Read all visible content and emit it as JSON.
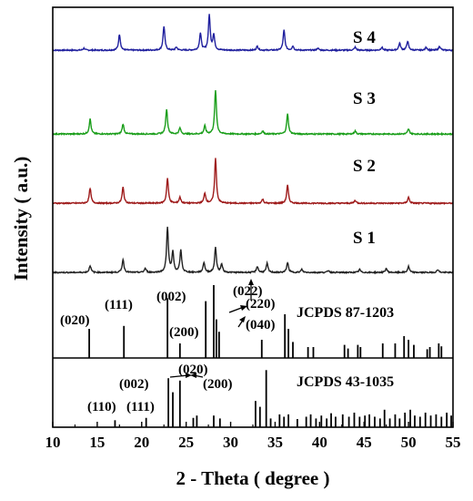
{
  "chart_data": {
    "type": "line",
    "xlabel": "2 - Theta ( degree )",
    "ylabel": "Intensity ( a.u.)",
    "xlim": [
      10,
      55
    ],
    "xticks": [
      10,
      15,
      20,
      25,
      30,
      35,
      40,
      45,
      50,
      55
    ],
    "grid": false,
    "series": [
      {
        "name": "S 4",
        "color": "#1f1f9e",
        "peaks": [
          [
            13.5,
            2
          ],
          [
            17.5,
            16
          ],
          [
            22.5,
            24
          ],
          [
            23.9,
            3
          ],
          [
            26.6,
            17
          ],
          [
            27.6,
            35
          ],
          [
            28.1,
            15
          ],
          [
            33.0,
            4
          ],
          [
            36.0,
            20
          ],
          [
            37.0,
            4
          ],
          [
            39.8,
            2
          ],
          [
            44.0,
            3
          ],
          [
            47.0,
            3
          ],
          [
            49.0,
            7
          ],
          [
            49.9,
            9
          ],
          [
            52.0,
            3
          ],
          [
            53.5,
            4
          ]
        ]
      },
      {
        "name": "S 3",
        "color": "#1a9e1a",
        "peaks": [
          [
            14.2,
            15
          ],
          [
            17.9,
            10
          ],
          [
            22.8,
            25
          ],
          [
            24.3,
            6
          ],
          [
            27.1,
            8
          ],
          [
            28.3,
            44
          ],
          [
            33.6,
            3
          ],
          [
            36.4,
            20
          ],
          [
            44.0,
            3
          ],
          [
            50.0,
            5
          ]
        ]
      },
      {
        "name": "S 2",
        "color": "#9e1a1a",
        "peaks": [
          [
            14.2,
            15
          ],
          [
            17.9,
            16
          ],
          [
            22.9,
            25
          ],
          [
            24.3,
            6
          ],
          [
            27.1,
            10
          ],
          [
            28.3,
            45
          ],
          [
            33.6,
            4
          ],
          [
            36.4,
            18
          ],
          [
            44.0,
            3
          ],
          [
            50.0,
            6
          ]
        ]
      },
      {
        "name": "S 1",
        "color": "#222222",
        "peaks": [
          [
            14.2,
            7
          ],
          [
            17.9,
            13
          ],
          [
            20.4,
            4
          ],
          [
            22.9,
            45
          ],
          [
            23.5,
            20
          ],
          [
            24.4,
            22
          ],
          [
            27.0,
            10
          ],
          [
            28.3,
            25
          ],
          [
            29.0,
            8
          ],
          [
            33.0,
            6
          ],
          [
            34.1,
            9
          ],
          [
            36.4,
            10
          ],
          [
            38.0,
            3
          ],
          [
            41.0,
            2
          ],
          [
            44.5,
            3
          ],
          [
            47.5,
            4
          ],
          [
            50.0,
            6
          ],
          [
            53.3,
            3
          ]
        ]
      }
    ],
    "references": [
      {
        "name": "JCPDS 87-1203",
        "sticks": [
          [
            14.1,
            0.4
          ],
          [
            18.0,
            0.44
          ],
          [
            22.9,
            0.82
          ],
          [
            24.3,
            0.2
          ],
          [
            27.2,
            0.78
          ],
          [
            28.1,
            1.0
          ],
          [
            28.4,
            0.53
          ],
          [
            28.7,
            0.36
          ],
          [
            33.5,
            0.25
          ],
          [
            36.1,
            0.6
          ],
          [
            36.5,
            0.4
          ],
          [
            37.0,
            0.22
          ],
          [
            38.7,
            0.15
          ],
          [
            39.3,
            0.15
          ],
          [
            42.8,
            0.18
          ],
          [
            43.2,
            0.13
          ],
          [
            44.3,
            0.18
          ],
          [
            44.6,
            0.15
          ],
          [
            47.1,
            0.2
          ],
          [
            48.5,
            0.2
          ],
          [
            49.5,
            0.3
          ],
          [
            50.0,
            0.25
          ],
          [
            50.6,
            0.18
          ],
          [
            52.1,
            0.12
          ],
          [
            52.4,
            0.15
          ],
          [
            53.4,
            0.2
          ],
          [
            53.7,
            0.16
          ]
        ],
        "miller_indices": [
          "(020)",
          "(111)",
          "(002)",
          "(200)",
          "(022)",
          "(220)",
          "(040)"
        ]
      },
      {
        "name": "JCPDS 43-1035",
        "sticks": [
          [
            17.0,
            0.12
          ],
          [
            20.5,
            0.16
          ],
          [
            23.0,
            0.84
          ],
          [
            23.5,
            0.6
          ],
          [
            24.3,
            0.8
          ],
          [
            25.8,
            0.16
          ],
          [
            26.2,
            0.2
          ],
          [
            28.1,
            0.2
          ],
          [
            28.8,
            0.15
          ],
          [
            32.8,
            0.45
          ],
          [
            33.3,
            0.35
          ],
          [
            34.0,
            0.98
          ],
          [
            34.5,
            0.15
          ],
          [
            35.5,
            0.22
          ],
          [
            36.0,
            0.18
          ],
          [
            36.5,
            0.22
          ],
          [
            37.5,
            0.14
          ],
          [
            38.5,
            0.18
          ],
          [
            39.0,
            0.22
          ],
          [
            39.6,
            0.15
          ],
          [
            40.2,
            0.2
          ],
          [
            40.8,
            0.15
          ],
          [
            41.3,
            0.24
          ],
          [
            41.8,
            0.18
          ],
          [
            42.6,
            0.22
          ],
          [
            43.3,
            0.18
          ],
          [
            43.9,
            0.25
          ],
          [
            44.5,
            0.18
          ],
          [
            45.1,
            0.2
          ],
          [
            45.6,
            0.22
          ],
          [
            46.2,
            0.18
          ],
          [
            46.8,
            0.15
          ],
          [
            47.3,
            0.3
          ],
          [
            47.9,
            0.15
          ],
          [
            48.5,
            0.22
          ],
          [
            49.0,
            0.15
          ],
          [
            49.6,
            0.25
          ],
          [
            50.2,
            0.3
          ],
          [
            50.7,
            0.2
          ],
          [
            51.3,
            0.18
          ],
          [
            51.9,
            0.25
          ],
          [
            52.5,
            0.2
          ],
          [
            53.1,
            0.22
          ],
          [
            53.7,
            0.18
          ],
          [
            54.3,
            0.25
          ],
          [
            54.8,
            0.2
          ]
        ],
        "miller_indices": [
          "(020)",
          "(002)",
          "(200)",
          "(110)",
          "(111)"
        ]
      }
    ]
  }
}
